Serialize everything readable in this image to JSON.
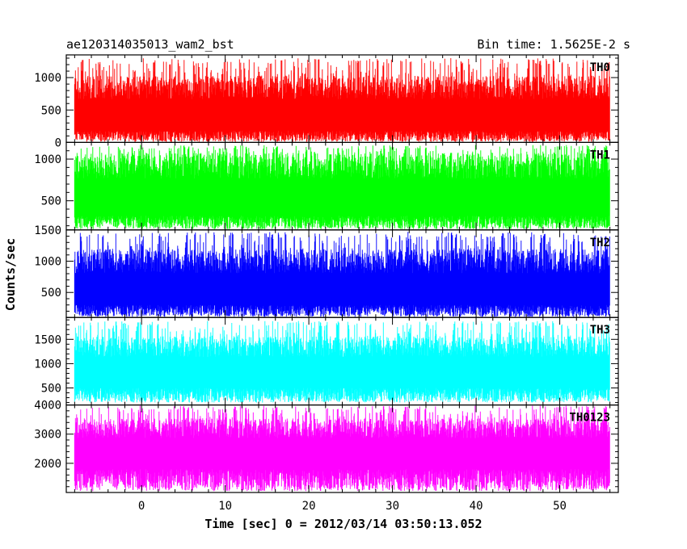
{
  "chart_data": {
    "type": "line",
    "title": "ae120314035013_wam2_bst",
    "subtitle": "Bin time: 1.5625E-2 s",
    "xlabel": "Time [sec] 0 = 2012/03/14 03:50:13.052",
    "ylabel": "Counts/sec",
    "xlim": [
      -9,
      57
    ],
    "x_tick_values": [
      0,
      10,
      20,
      30,
      40,
      50
    ],
    "x_tick_labels": [
      "0",
      "10",
      "20",
      "30",
      "40",
      "50"
    ],
    "data_x_range": [
      -8,
      56
    ],
    "grid": false,
    "legend": "none",
    "panels": [
      {
        "name": "TH0",
        "color": "#ff0000",
        "ylim": [
          0,
          1350
        ],
        "y_tick_values": [
          0,
          500,
          1000
        ],
        "y_tick_labels": [
          "0",
          "500",
          "1000"
        ],
        "band_low": 120,
        "band_high": 850,
        "floor_min": 10,
        "floor_max": 180,
        "peak_max": 1300
      },
      {
        "name": "TH1",
        "color": "#00ff00",
        "ylim": [
          150,
          1200
        ],
        "y_tick_values": [
          500,
          1000
        ],
        "y_tick_labels": [
          "500",
          "1000"
        ],
        "band_low": 300,
        "band_high": 920,
        "floor_min": 160,
        "floor_max": 320,
        "peak_max": 1170
      },
      {
        "name": "TH2",
        "color": "#0000ff",
        "ylim": [
          100,
          1500
        ],
        "y_tick_values": [
          500,
          1000,
          1500
        ],
        "y_tick_labels": [
          "500",
          "1000",
          "1500"
        ],
        "band_low": 220,
        "band_high": 1000,
        "floor_min": 110,
        "floor_max": 300,
        "peak_max": 1470
      },
      {
        "name": "TH3",
        "color": "#00ffff",
        "ylim": [
          150,
          1950
        ],
        "y_tick_values": [
          500,
          1000,
          1500
        ],
        "y_tick_labels": [
          "500",
          "1000",
          "1500"
        ],
        "band_low": 500,
        "band_high": 1350,
        "floor_min": 200,
        "floor_max": 500,
        "peak_max": 1880
      },
      {
        "name": "TH0123",
        "color": "#ff00ff",
        "ylim": [
          1000,
          4000
        ],
        "y_tick_values": [
          2000,
          3000,
          4000
        ],
        "y_tick_labels": [
          "2000",
          "3000",
          "4000"
        ],
        "band_low": 1850,
        "band_high": 3200,
        "floor_min": 1050,
        "floor_max": 1800,
        "peak_max": 3980
      }
    ]
  }
}
